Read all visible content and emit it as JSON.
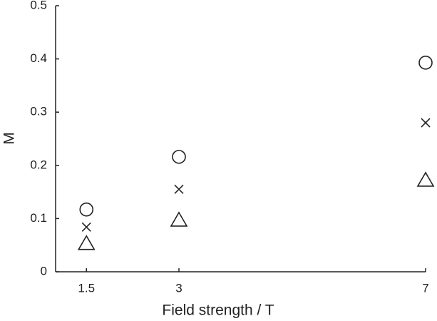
{
  "chart_data": {
    "type": "scatter",
    "x_label": "Field strength / T",
    "y_label": "M",
    "x": [
      1.5,
      3,
      7
    ],
    "series": [
      {
        "marker": "circle",
        "color": "#222222",
        "values": [
          0.117,
          0.216,
          0.393
        ]
      },
      {
        "marker": "x",
        "color": "#222222",
        "values": [
          0.084,
          0.155,
          0.28
        ]
      },
      {
        "marker": "triangle",
        "color": "#222222",
        "values": [
          0.054,
          0.098,
          0.173
        ]
      }
    ],
    "xlim": [
      1,
      7
    ],
    "xticks": [
      1.5,
      3,
      7
    ],
    "ylim": [
      0,
      0.5
    ],
    "yticks": [
      0,
      0.1,
      0.2,
      0.3,
      0.4,
      0.5
    ],
    "grid": false
  }
}
